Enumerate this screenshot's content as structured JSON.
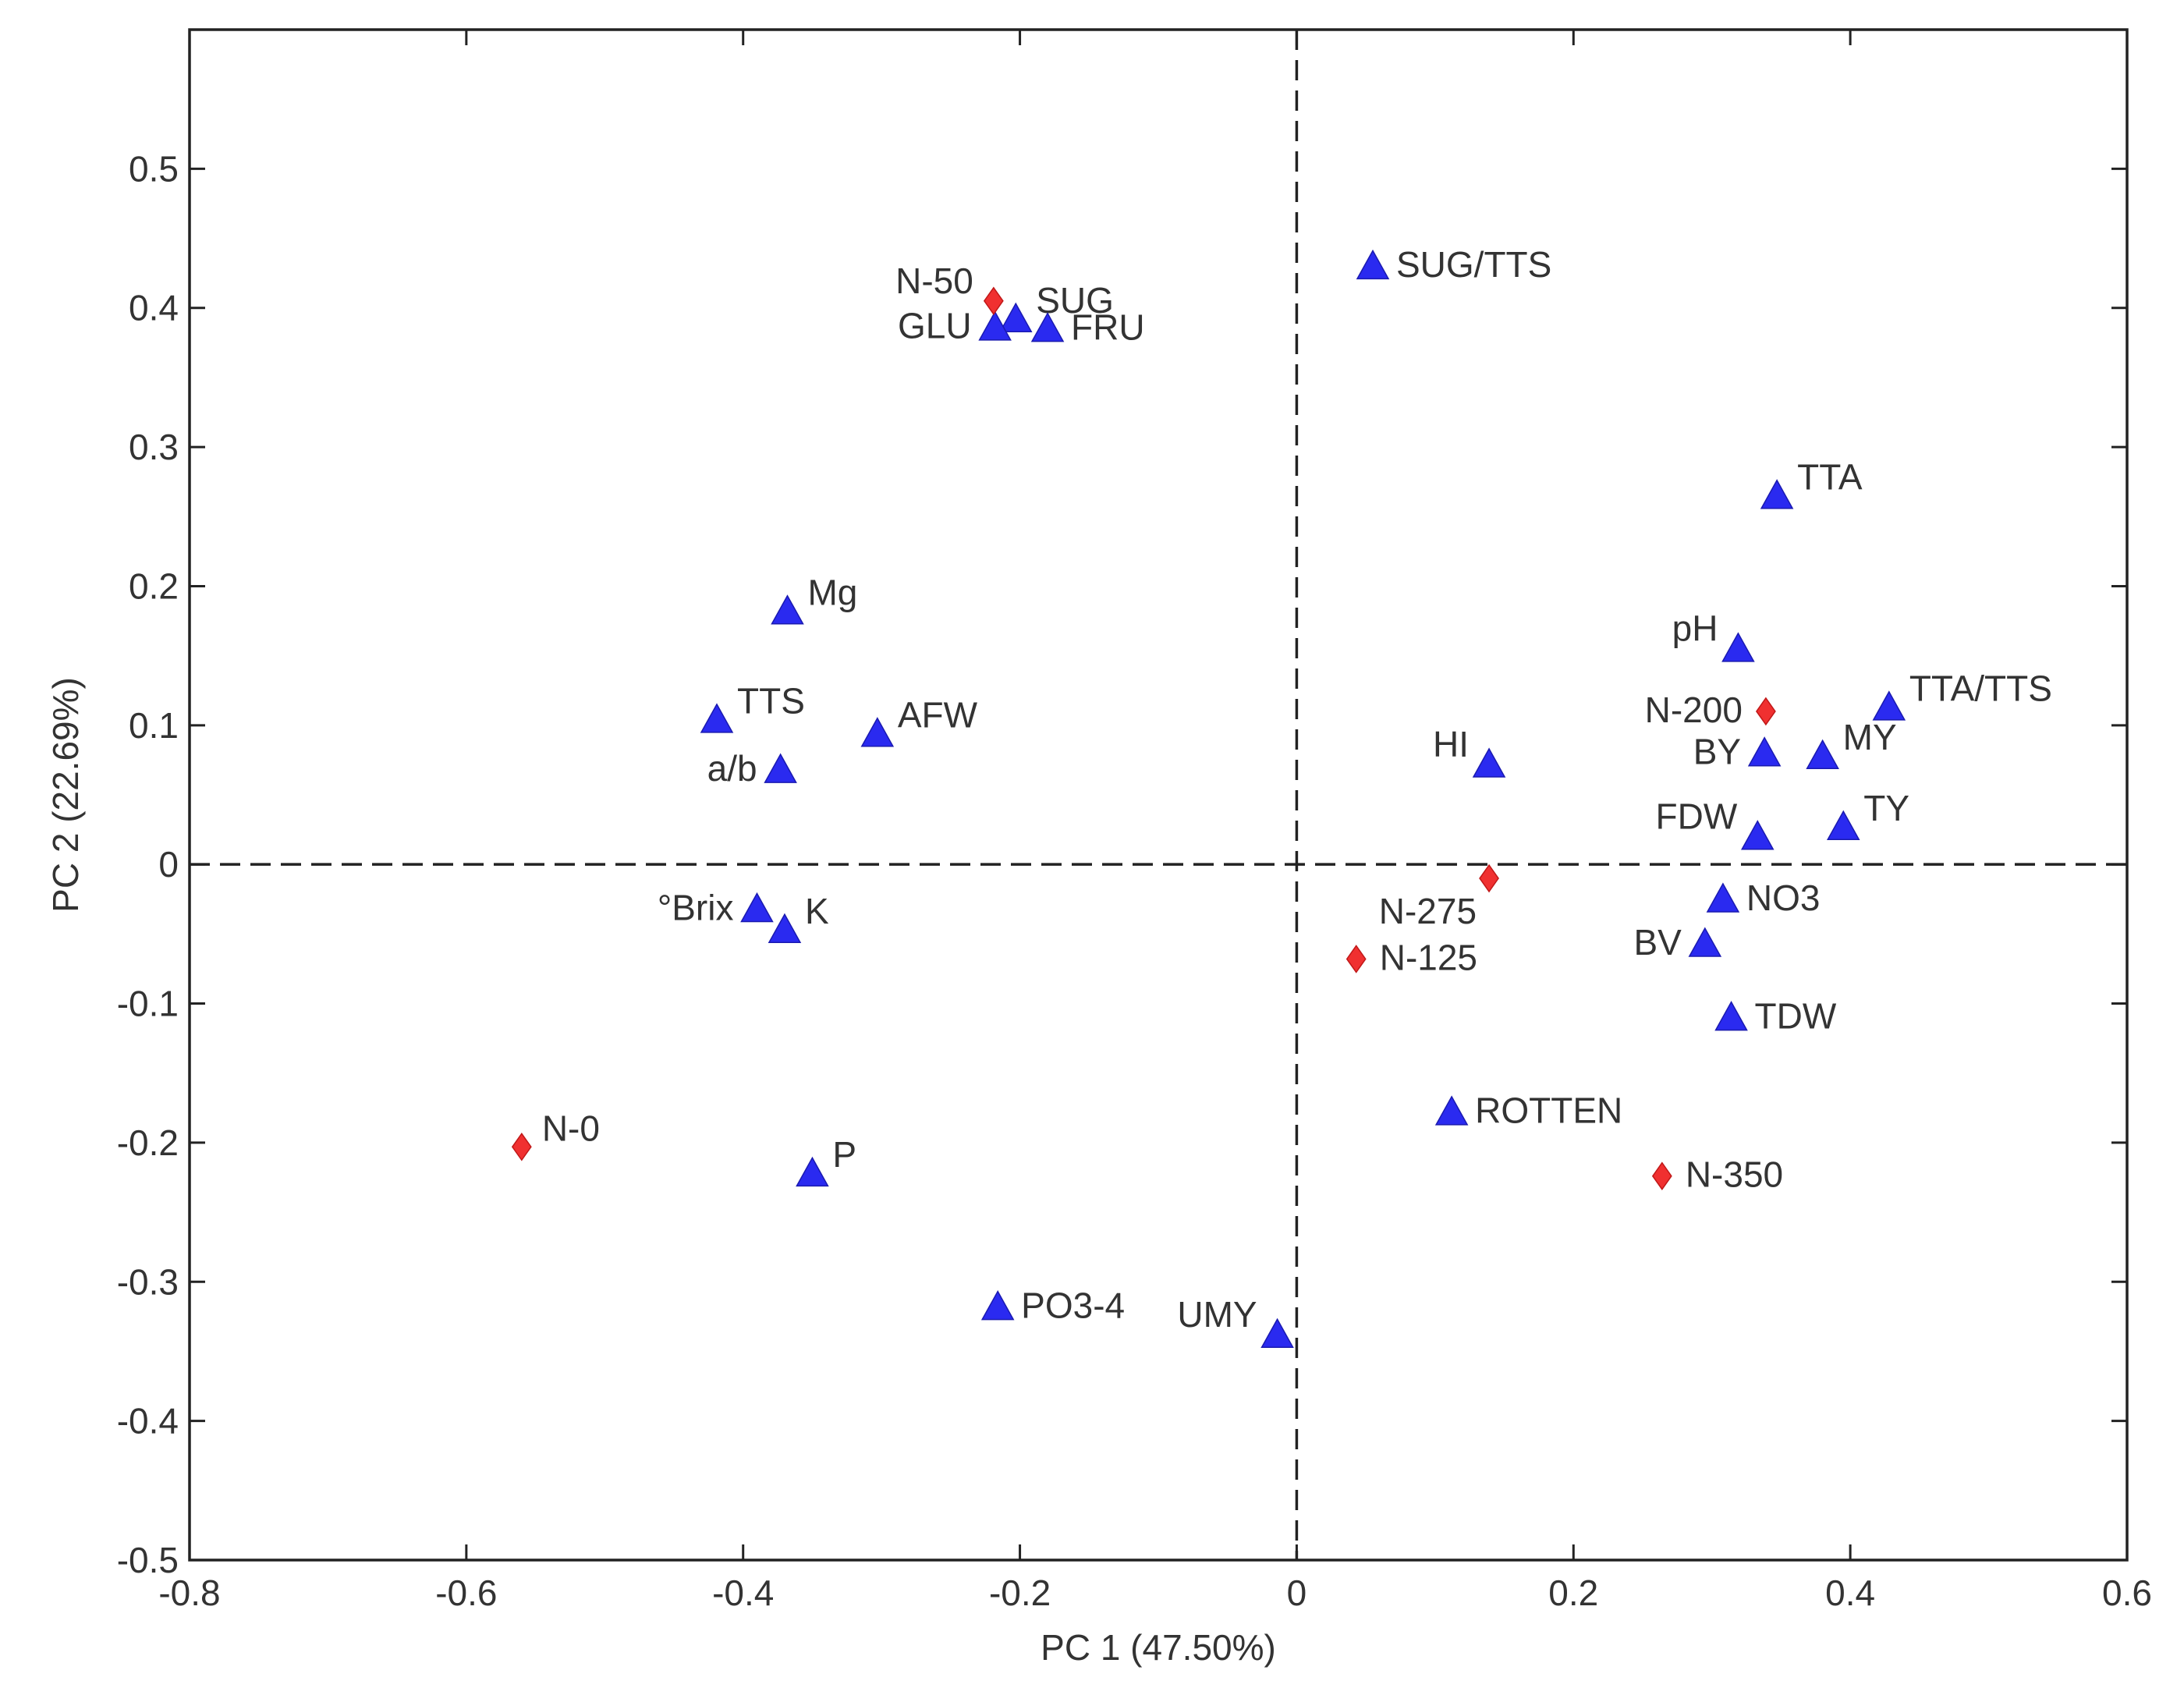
{
  "chart_data": {
    "type": "scatter",
    "title": "",
    "xlabel": "PC 1 (47.50%)",
    "ylabel": "PC 2 (22.69%)",
    "xlim": [
      -0.8,
      0.6
    ],
    "ylim": [
      -0.5,
      0.6
    ],
    "grid": false,
    "reference_lines": {
      "x": 0,
      "y": 0,
      "style": "dashed"
    },
    "x_ticks": [
      {
        "value": -0.8,
        "label": "-0.8"
      },
      {
        "value": -0.6,
        "label": "-0.6"
      },
      {
        "value": -0.4,
        "label": "-0.4"
      },
      {
        "value": -0.2,
        "label": "-0.2"
      },
      {
        "value": 0,
        "label": "0"
      },
      {
        "value": 0.2,
        "label": "0.2"
      },
      {
        "value": 0.4,
        "label": "0.4"
      },
      {
        "value": 0.6,
        "label": "0.6"
      }
    ],
    "y_ticks": [
      {
        "value": 0.5,
        "label": "0.5"
      },
      {
        "value": 0.4,
        "label": "0.4"
      },
      {
        "value": 0.3,
        "label": "0.3"
      },
      {
        "value": 0.2,
        "label": "0.2"
      },
      {
        "value": 0.1,
        "label": "0.1"
      },
      {
        "value": 0,
        "label": "0"
      },
      {
        "value": -0.1,
        "label": "-0.1"
      },
      {
        "value": -0.2,
        "label": "-0.2"
      },
      {
        "value": -0.3,
        "label": "-0.3"
      },
      {
        "value": -0.4,
        "label": "-0.4"
      },
      {
        "value": -0.5,
        "label": "-0.5"
      }
    ],
    "series": [
      {
        "name": "variables",
        "marker": "triangle",
        "color": "#2a2af0",
        "points": [
          {
            "label": "SUG/TTS",
            "x": 0.055,
            "y": 0.43,
            "label_side": "right"
          },
          {
            "label": "SUG",
            "x": -0.203,
            "y": 0.392,
            "label_side": "upper-right"
          },
          {
            "label": "GLU",
            "x": -0.218,
            "y": 0.386,
            "label_side": "left"
          },
          {
            "label": "FRU",
            "x": -0.18,
            "y": 0.385,
            "label_side": "right"
          },
          {
            "label": "TTA",
            "x": 0.347,
            "y": 0.265,
            "label_side": "upper-right"
          },
          {
            "label": "Mg",
            "x": -0.368,
            "y": 0.182,
            "label_side": "upper-right"
          },
          {
            "label": "pH",
            "x": 0.319,
            "y": 0.155,
            "label_side": "upper-left"
          },
          {
            "label": "TTA/TTS",
            "x": 0.428,
            "y": 0.113,
            "label_side": "upper-right"
          },
          {
            "label": "TTS",
            "x": -0.419,
            "y": 0.104,
            "label_side": "upper-right"
          },
          {
            "label": "AFW",
            "x": -0.303,
            "y": 0.094,
            "label_side": "upper-right"
          },
          {
            "label": "BY",
            "x": 0.338,
            "y": 0.08,
            "label_side": "left"
          },
          {
            "label": "MY",
            "x": 0.38,
            "y": 0.078,
            "label_side": "upper-right"
          },
          {
            "label": "HI",
            "x": 0.139,
            "y": 0.072,
            "label_side": "upper-left"
          },
          {
            "label": "a/b",
            "x": -0.373,
            "y": 0.068,
            "label_side": "left"
          },
          {
            "label": "TY",
            "x": 0.395,
            "y": 0.027,
            "label_side": "upper-right"
          },
          {
            "label": "FDW",
            "x": 0.333,
            "y": 0.02,
            "label_side": "upper-left"
          },
          {
            "label": "NO3",
            "x": 0.308,
            "y": -0.025,
            "label_side": "right"
          },
          {
            "label": "°Brix",
            "x": -0.39,
            "y": -0.032,
            "label_side": "left"
          },
          {
            "label": "K",
            "x": -0.37,
            "y": -0.047,
            "label_side": "upper-right"
          },
          {
            "label": "BV",
            "x": 0.295,
            "y": -0.057,
            "label_side": "left"
          },
          {
            "label": "TDW",
            "x": 0.314,
            "y": -0.11,
            "label_side": "right"
          },
          {
            "label": "ROTTEN",
            "x": 0.112,
            "y": -0.178,
            "label_side": "right"
          },
          {
            "label": "P",
            "x": -0.35,
            "y": -0.222,
            "label_side": "upper-right"
          },
          {
            "label": "PO3-4",
            "x": -0.216,
            "y": -0.318,
            "label_side": "right"
          },
          {
            "label": "UMY",
            "x": -0.014,
            "y": -0.338,
            "label_side": "upper-left"
          }
        ]
      },
      {
        "name": "treatments",
        "marker": "diamond",
        "color": "#f03030",
        "points": [
          {
            "label": "N-50",
            "x": -0.219,
            "y": 0.405,
            "label_side": "upper-left"
          },
          {
            "label": "N-200",
            "x": 0.339,
            "y": 0.11,
            "label_side": "left"
          },
          {
            "label": "N-275",
            "x": 0.139,
            "y": -0.01,
            "label_side": "lower-left"
          },
          {
            "label": "N-125",
            "x": 0.043,
            "y": -0.068,
            "label_side": "right"
          },
          {
            "label": "N-0",
            "x": -0.56,
            "y": -0.203,
            "label_side": "upper-right"
          },
          {
            "label": "N-350",
            "x": 0.264,
            "y": -0.224,
            "label_side": "right"
          }
        ]
      }
    ]
  }
}
